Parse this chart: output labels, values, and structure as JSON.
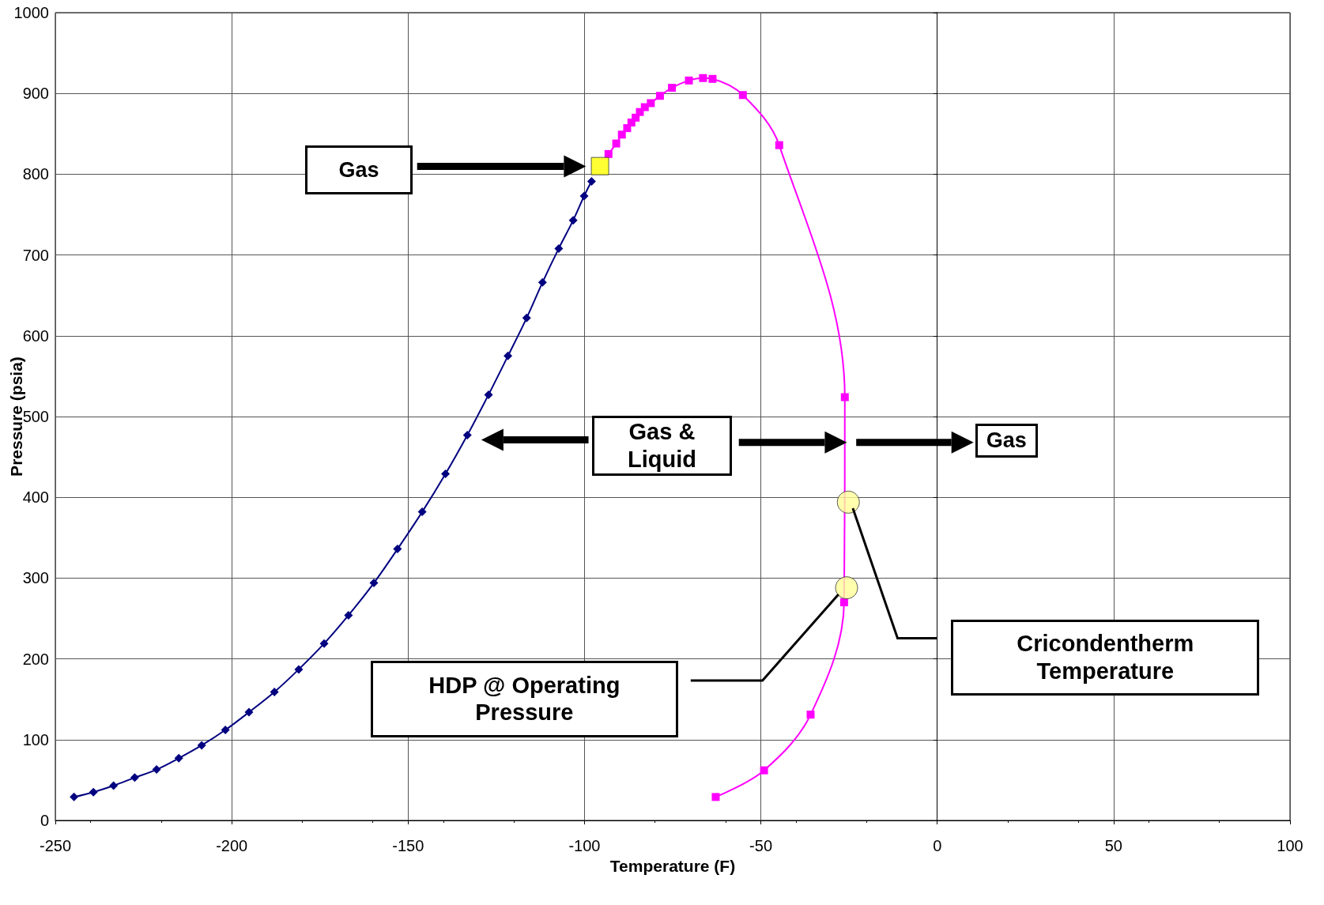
{
  "chart_data": {
    "type": "line",
    "xlabel": "Temperature (F)",
    "ylabel": "Pressure (psia)",
    "xlim": [
      -250,
      100
    ],
    "xticks": [
      -250,
      -200,
      -150,
      -100,
      -50,
      0,
      50,
      100
    ],
    "ylim": [
      0,
      1000
    ],
    "yticks": [
      0,
      100,
      200,
      300,
      400,
      500,
      600,
      700,
      800,
      900,
      1000
    ],
    "grid": true,
    "line_style": "solid",
    "series": [
      {
        "color": "#000080",
        "marker": "diamond",
        "x": [
          -244.7,
          -239.2,
          -233.5,
          -227.5,
          -221.3,
          -215.0,
          -208.5,
          -201.8,
          -195.1,
          -187.9,
          -181.0,
          -173.8,
          -166.9,
          -159.7,
          -153.0,
          -146.0,
          -139.4,
          -133.2,
          -127.2,
          -121.7,
          -116.4,
          -111.9,
          -107.3,
          -103.2,
          -100.1,
          -98.0
        ],
        "values": [
          29,
          35,
          43,
          53,
          63,
          77,
          93,
          112,
          134,
          159,
          187,
          219,
          254,
          294,
          336,
          382,
          429,
          477,
          527,
          575,
          622,
          666,
          708,
          743,
          773,
          791
        ]
      },
      {
        "color": "#ff00ff",
        "marker": "square",
        "x": [
          -93.2,
          -91.0,
          -89.4,
          -87.9,
          -86.7,
          -85.5,
          -84.3,
          -82.9,
          -81.2,
          -78.6,
          -75.2,
          -70.4,
          -66.4,
          -63.7,
          -55.1,
          -44.8,
          -26.2,
          -26.4,
          -35.9,
          -49.1,
          -62.8
        ],
        "values": [
          825,
          838,
          849,
          857,
          864,
          870,
          877,
          883,
          888,
          897,
          907,
          916,
          919,
          918,
          898,
          836,
          524,
          270,
          131,
          62,
          29
        ]
      },
      {
        "type": "scatter",
        "color": "#ffff00",
        "marker": "square",
        "x": [
          -95.6
        ],
        "values": [
          810
        ]
      },
      {
        "type": "scatter",
        "color": "#ffff99",
        "marker": "circle",
        "x": [
          -25.2,
          -25.7
        ],
        "values": [
          394,
          288
        ]
      }
    ],
    "annotations": [
      "Gas",
      "Gas & Liquid",
      "Gas",
      "Cricondentherm Temperature",
      "HDP @ Operating Pressure"
    ]
  }
}
